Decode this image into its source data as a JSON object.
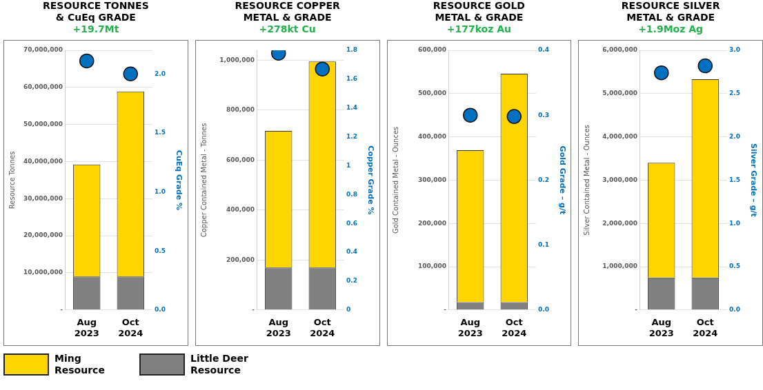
{
  "chart_data": [
    {
      "type": "bar",
      "title": "RESOURCE TONNES\n& CuEq GRADE",
      "subtitle": "+19.7Mt",
      "ylabel": "Resource Tonnes",
      "y2label": "CuEq Grade %",
      "categories": [
        "Aug 2023",
        "Oct 2024"
      ],
      "stacked": true,
      "grid": "y",
      "legend": "bottom",
      "marker": "circle",
      "series": [
        {
          "name": "Little Deer Resource",
          "color": "#808080",
          "values": [
            9000000,
            9000000
          ]
        },
        {
          "name": "Ming Resource",
          "color": "#ffd500",
          "values": [
            30200000,
            49900000
          ]
        },
        {
          "type": "scatter",
          "axis": "y2",
          "color": "#0070c0",
          "values": [
            2.11,
            2.0
          ]
        }
      ],
      "ylim": [
        0,
        70000000
      ],
      "yticks": [
        {
          "value": 0,
          "label": "-"
        },
        {
          "value": 10000000,
          "label": "10,000,000"
        },
        {
          "value": 20000000,
          "label": "20,000,000"
        },
        {
          "value": 30000000,
          "label": "30,000,000"
        },
        {
          "value": 40000000,
          "label": "40,000,000"
        },
        {
          "value": 50000000,
          "label": "50,000,000"
        },
        {
          "value": 60000000,
          "label": "60,000,000"
        },
        {
          "value": 70000000,
          "label": "70,000,000"
        }
      ],
      "y2lim": [
        0,
        2.2
      ],
      "y2ticks": [
        {
          "value": 0,
          "label": "0.0"
        },
        0.5,
        {
          "value": 1,
          "label": "1.0"
        },
        1.5,
        {
          "value": 2,
          "label": "2.0"
        }
      ]
    },
    {
      "type": "bar",
      "title": "RESOURCE COPPER\nMETAL & GRADE",
      "subtitle": "+278kt Cu",
      "ylabel": "Copper Contained Metal - Tonnes",
      "y2label": "Copper Grade %",
      "categories": [
        "Aug 2023",
        "Oct 2024"
      ],
      "stacked": true,
      "grid": "y",
      "marker": "circle",
      "series": [
        {
          "color": "#808080",
          "values": [
            170000,
            170000
          ]
        },
        {
          "color": "#ffd500",
          "values": [
            547000,
            825000
          ]
        },
        {
          "type": "scatter",
          "axis": "y2",
          "color": "#0070c0",
          "values": [
            1.78,
            1.67
          ]
        }
      ],
      "ylim": [
        0,
        1040000
      ],
      "yticks": [
        {
          "value": 0,
          "label": "-"
        },
        {
          "value": 200000,
          "label": "200,000"
        },
        {
          "value": 400000,
          "label": "400,000"
        },
        {
          "value": 600000,
          "label": "600,000"
        },
        {
          "value": 800000,
          "label": "800,000"
        },
        {
          "value": 1000000,
          "label": "1,000,000"
        }
      ],
      "y2lim": [
        0,
        1.8
      ],
      "y2ticks": [
        0,
        0.2,
        0.4,
        0.6,
        0.8,
        1,
        1.2,
        1.4,
        1.6,
        1.8
      ]
    },
    {
      "type": "bar",
      "title": "RESOURCE GOLD\nMETAL & GRADE",
      "subtitle": "+177koz Au",
      "ylabel": "Gold Contained Metal - Ounces",
      "y2label": "Gold Grade – g/t",
      "categories": [
        "Aug 2023",
        "Oct 2024"
      ],
      "stacked": true,
      "grid": "y",
      "marker": "circle",
      "series": [
        {
          "color": "#808080",
          "values": [
            18000,
            18000
          ]
        },
        {
          "color": "#ffd500",
          "values": [
            351000,
            528000
          ]
        },
        {
          "type": "scatter",
          "axis": "y2",
          "color": "#0070c0",
          "values": [
            0.3,
            0.298
          ]
        }
      ],
      "ylim": [
        0,
        600000
      ],
      "yticks": [
        {
          "value": 0,
          "label": "-"
        },
        {
          "value": 100000,
          "label": "100,000"
        },
        {
          "value": 200000,
          "label": "200,000"
        },
        {
          "value": 300000,
          "label": "300,000"
        },
        {
          "value": 400000,
          "label": "400,000"
        },
        {
          "value": 500000,
          "label": "500,000"
        },
        {
          "value": 600000,
          "label": "600,000"
        }
      ],
      "y2lim": [
        0,
        0.4
      ],
      "y2ticks": [
        {
          "value": 0,
          "label": "0.0"
        },
        0.1,
        0.2,
        0.3,
        0.4
      ]
    },
    {
      "type": "bar",
      "title": "RESOURCE SILVER\nMETAL & GRADE",
      "subtitle": "+1.9Moz Ag",
      "ylabel": "Silver Contained Metal - Ounces",
      "y2label": "Silver Grade – g/t",
      "categories": [
        "Aug 2023",
        "Oct 2024"
      ],
      "stacked": true,
      "grid": "y",
      "marker": "circle",
      "series": [
        {
          "color": "#808080",
          "values": [
            750000,
            750000
          ]
        },
        {
          "color": "#ffd500",
          "values": [
            2650000,
            4580000
          ]
        },
        {
          "type": "scatter",
          "axis": "y2",
          "color": "#0070c0",
          "values": [
            2.74,
            2.82
          ]
        }
      ],
      "ylim": [
        0,
        6000000
      ],
      "yticks": [
        {
          "value": 0,
          "label": "-"
        },
        {
          "value": 1000000,
          "label": "1,000,000"
        },
        {
          "value": 2000000,
          "label": "2,000,000"
        },
        {
          "value": 3000000,
          "label": "3,000,000"
        },
        {
          "value": 4000000,
          "label": "4,000,000"
        },
        {
          "value": 5000000,
          "label": "5,000,000"
        },
        {
          "value": 6000000,
          "label": "6,000,000"
        }
      ],
      "y2lim": [
        0,
        3.0
      ],
      "y2ticks": [
        {
          "value": 0,
          "label": "0.0"
        },
        0.5,
        {
          "value": 1,
          "label": "1.0"
        },
        1.5,
        {
          "value": 2,
          "label": "2.0"
        },
        2.5,
        {
          "value": 3,
          "label": "3.0"
        }
      ]
    }
  ]
}
